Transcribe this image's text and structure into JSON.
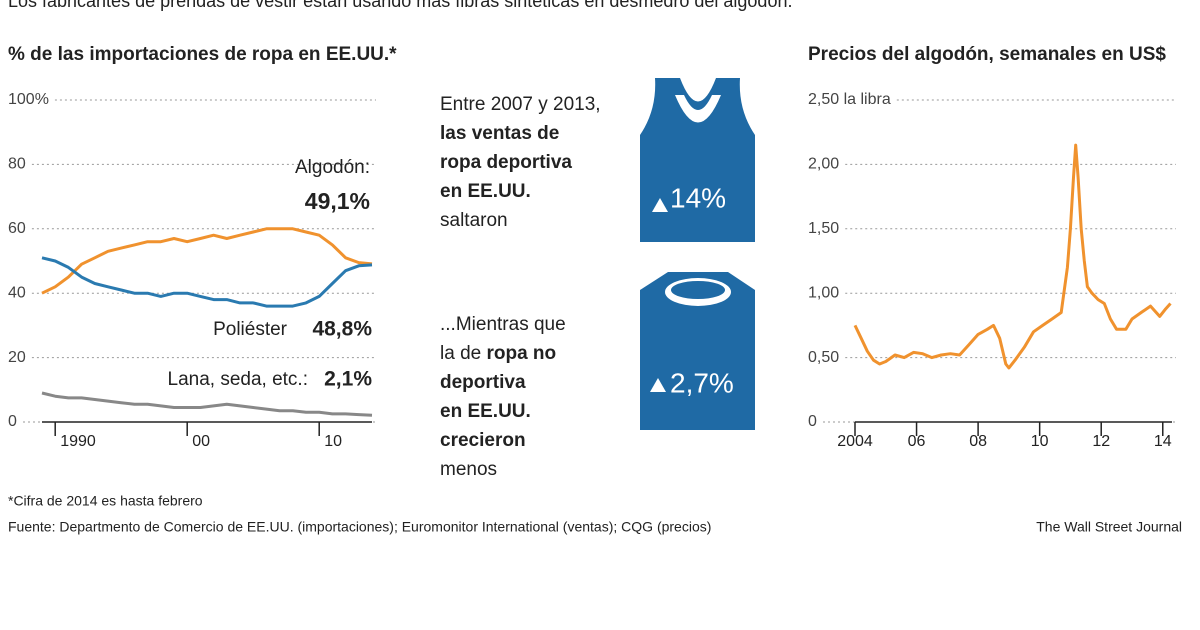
{
  "header": "Los fabricantes de prendas de vestir están usando más fibras sintéticas en desmedro del algodón.",
  "chart_data": [
    {
      "type": "line",
      "title": "% de las importaciones de ropa en EE.UU.*",
      "x": [
        1989,
        1990,
        1991,
        1992,
        1993,
        1994,
        1995,
        1996,
        1997,
        1998,
        1999,
        2000,
        2001,
        2002,
        2003,
        2004,
        2005,
        2006,
        2007,
        2008,
        2009,
        2010,
        2011,
        2012,
        2013,
        2014
      ],
      "xlim": [
        1989,
        2014
      ],
      "xticks": [
        {
          "value": 1990,
          "label": "1990"
        },
        {
          "value": 2000,
          "label": "00"
        },
        {
          "value": 2010,
          "label": "10"
        }
      ],
      "ylim": [
        0,
        100
      ],
      "yticks": [
        0,
        20,
        40,
        60,
        80,
        {
          "value": 100,
          "label": "100%"
        }
      ],
      "grid": true,
      "series": [
        {
          "name": "Algodón:",
          "color": "#f0922e",
          "values": [
            40,
            42,
            45,
            49,
            51,
            53,
            54,
            55,
            56,
            56,
            57,
            56,
            57,
            58,
            57,
            58,
            59,
            60,
            60,
            60,
            59,
            58,
            55,
            51,
            49.5,
            49.1
          ],
          "value_labels": [
            null,
            null,
            null,
            null,
            null,
            null,
            null,
            null,
            null,
            null,
            null,
            null,
            null,
            null,
            null,
            null,
            null,
            null,
            null,
            null,
            null,
            null,
            null,
            null,
            null,
            "49,1%"
          ]
        },
        {
          "name": "Poliéster",
          "color": "#2a7ab0",
          "values": [
            51,
            50,
            48,
            45,
            43,
            42,
            41,
            40,
            40,
            39,
            40,
            40,
            39,
            38,
            38,
            37,
            37,
            36,
            36,
            36,
            37,
            39,
            43,
            47,
            48.5,
            48.8
          ],
          "value_labels": [
            null,
            null,
            null,
            null,
            null,
            null,
            null,
            null,
            null,
            null,
            null,
            null,
            null,
            null,
            null,
            null,
            null,
            null,
            null,
            null,
            null,
            null,
            null,
            null,
            null,
            "48,8%"
          ]
        },
        {
          "name": "Lana, seda, etc.:",
          "color": "#888888",
          "values": [
            9,
            8,
            7.5,
            7.5,
            7,
            6.5,
            6,
            5.5,
            5.5,
            5,
            4.5,
            4.5,
            4.5,
            5,
            5.5,
            5,
            4.5,
            4,
            3.5,
            3.5,
            3,
            3,
            2.5,
            2.5,
            2.3,
            2.1
          ],
          "value_labels": [
            null,
            null,
            null,
            null,
            null,
            null,
            null,
            null,
            null,
            null,
            null,
            null,
            null,
            null,
            null,
            null,
            null,
            null,
            null,
            null,
            null,
            null,
            null,
            null,
            null,
            "2,1%"
          ]
        }
      ]
    },
    {
      "type": "line",
      "title": "Precios del algodón, semanales en US$",
      "x": [
        2004.0,
        2004.2,
        2004.4,
        2004.6,
        2004.8,
        2005.0,
        2005.3,
        2005.6,
        2005.9,
        2006.2,
        2006.5,
        2006.8,
        2007.1,
        2007.4,
        2007.7,
        2008.0,
        2008.3,
        2008.5,
        2008.7,
        2008.9,
        2009.0,
        2009.2,
        2009.5,
        2009.8,
        2010.1,
        2010.4,
        2010.7,
        2010.9,
        2011.0,
        2011.1,
        2011.17,
        2011.25,
        2011.35,
        2011.45,
        2011.55,
        2011.7,
        2011.9,
        2012.1,
        2012.3,
        2012.5,
        2012.8,
        2013.0,
        2013.3,
        2013.6,
        2013.9,
        2014.1,
        2014.25
      ],
      "xlim": [
        2004,
        2014.3
      ],
      "xticks": [
        2004,
        {
          "value": 2006,
          "label": "06"
        },
        {
          "value": 2008,
          "label": "08"
        },
        {
          "value": 2010,
          "label": "10"
        },
        {
          "value": 2012,
          "label": "12"
        },
        {
          "value": 2014,
          "label": "14"
        }
      ],
      "ylim": [
        0,
        2.5
      ],
      "yticks": [
        0,
        {
          "value": 0.5,
          "label": "0,50"
        },
        {
          "value": 1,
          "label": "1,00"
        },
        {
          "value": 1.5,
          "label": "1,50"
        },
        {
          "value": 2,
          "label": "2,00"
        },
        {
          "value": 2.5,
          "label": "2,50 la libra"
        }
      ],
      "grid": true,
      "series": [
        {
          "color": "#f0922e",
          "values": [
            0.75,
            0.65,
            0.55,
            0.48,
            0.45,
            0.47,
            0.52,
            0.5,
            0.54,
            0.53,
            0.5,
            0.52,
            0.53,
            0.52,
            0.6,
            0.68,
            0.72,
            0.75,
            0.65,
            0.45,
            0.42,
            0.48,
            0.58,
            0.7,
            0.75,
            0.8,
            0.85,
            1.2,
            1.5,
            1.9,
            2.15,
            1.9,
            1.5,
            1.25,
            1.05,
            1.0,
            0.95,
            0.92,
            0.8,
            0.72,
            0.72,
            0.8,
            0.85,
            0.9,
            0.82,
            0.88,
            0.92
          ]
        }
      ]
    }
  ],
  "middle": {
    "blocks": [
      {
        "lines": [
          [
            {
              "text": "Entre 2007 y 2013,"
            }
          ],
          [
            {
              "text": "las ventas de",
              "bold": true
            }
          ],
          [
            {
              "text": "ropa deportiva",
              "bold": true
            }
          ],
          [
            {
              "text": "en EE.UU.",
              "bold": true
            }
          ],
          [
            {
              "text": "saltaron"
            }
          ]
        ],
        "badge": "14%"
      },
      {
        "lines": [
          [
            {
              "text": "...Mientras que"
            }
          ],
          [
            {
              "text": "la de "
            },
            {
              "text": "ropa no",
              "bold": true
            }
          ],
          [
            {
              "text": "deportiva",
              "bold": true
            }
          ],
          [
            {
              "text": "en EE.UU.",
              "bold": true
            }
          ],
          [
            {
              "text": "crecieron",
              "bold": true
            }
          ],
          [
            {
              "text": "menos"
            }
          ]
        ],
        "badge": "2,7%"
      }
    ]
  },
  "notes": {
    "footnote": "*Cifra de 2014 es hasta febrero",
    "source": "Fuente: Departmento de Comercio de EE.UU. (importaciones); Euromonitor International (ventas); CQG (precios)",
    "credit": "The Wall Street Journal"
  }
}
